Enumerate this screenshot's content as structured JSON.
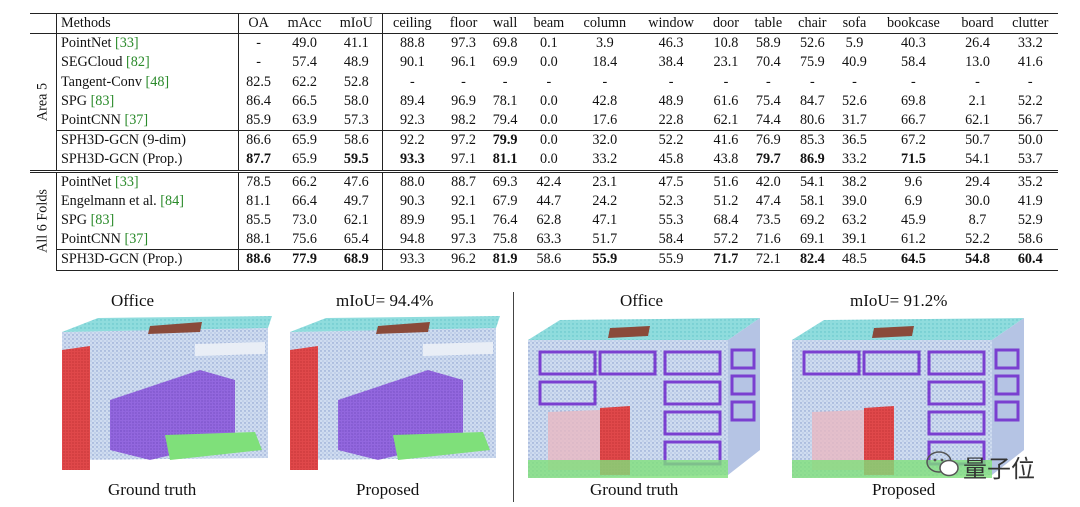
{
  "table": {
    "columns": [
      "Methods",
      "OA",
      "mAcc",
      "mIoU",
      "ceiling",
      "floor",
      "wall",
      "beam",
      "column",
      "window",
      "door",
      "table",
      "chair",
      "sofa",
      "bookcase",
      "board",
      "clutter"
    ],
    "groups": [
      {
        "label": "Area 5",
        "rows": [
          {
            "name": "PointNet ",
            "cite": "[33]",
            "vals": [
              "-",
              "49.0",
              "41.1",
              "88.8",
              "97.3",
              "69.8",
              "0.1",
              "3.9",
              "46.3",
              "10.8",
              "58.9",
              "52.6",
              "5.9",
              "40.3",
              "26.4",
              "33.2"
            ],
            "bold": []
          },
          {
            "name": "SEGCloud ",
            "cite": "[82]",
            "vals": [
              "-",
              "57.4",
              "48.9",
              "90.1",
              "96.1",
              "69.9",
              "0.0",
              "18.4",
              "38.4",
              "23.1",
              "70.4",
              "75.9",
              "40.9",
              "58.4",
              "13.0",
              "41.6"
            ],
            "bold": []
          },
          {
            "name": "Tangent-Conv ",
            "cite": "[48]",
            "vals": [
              "82.5",
              "62.2",
              "52.8",
              "-",
              "-",
              "-",
              "-",
              "-",
              "-",
              "-",
              "-",
              "-",
              "-",
              "-",
              "-",
              "-"
            ],
            "bold": []
          },
          {
            "name": "SPG ",
            "cite": "[83]",
            "vals": [
              "86.4",
              "66.5",
              "58.0",
              "89.4",
              "96.9",
              "78.1",
              "0.0",
              "42.8",
              "48.9",
              "61.6",
              "75.4",
              "84.7",
              "52.6",
              "69.8",
              "2.1",
              "52.2"
            ],
            "bold": []
          },
          {
            "name": "PointCNN ",
            "cite": "[37]",
            "vals": [
              "85.9",
              "63.9",
              "57.3",
              "92.3",
              "98.2",
              "79.4",
              "0.0",
              "17.6",
              "22.8",
              "62.1",
              "74.4",
              "80.6",
              "31.7",
              "66.7",
              "62.1",
              "56.7"
            ],
            "bold": []
          },
          {
            "name": "SPH3D-GCN (9-dim)",
            "cite": "",
            "vals": [
              "86.6",
              "65.9",
              "58.6",
              "92.2",
              "97.2",
              "79.9",
              "0.0",
              "32.0",
              "52.2",
              "41.6",
              "76.9",
              "85.3",
              "36.5",
              "67.2",
              "50.7",
              "50.0"
            ],
            "bold": [
              5
            ]
          },
          {
            "name": "SPH3D-GCN (Prop.)",
            "cite": "",
            "vals": [
              "87.7",
              "65.9",
              "59.5",
              "93.3",
              "97.1",
              "81.1",
              "0.0",
              "33.2",
              "45.8",
              "43.8",
              "79.7",
              "86.9",
              "33.2",
              "71.5",
              "54.1",
              "53.7"
            ],
            "bold": [
              0,
              2,
              3,
              5,
              10,
              11,
              13
            ]
          }
        ]
      },
      {
        "label": "All 6 Folds",
        "rows": [
          {
            "name": "PointNet ",
            "cite": "[33]",
            "vals": [
              "78.5",
              "66.2",
              "47.6",
              "88.0",
              "88.7",
              "69.3",
              "42.4",
              "23.1",
              "47.5",
              "51.6",
              "42.0",
              "54.1",
              "38.2",
              "9.6",
              "29.4",
              "35.2"
            ],
            "bold": []
          },
          {
            "name": "Engelmann et al. ",
            "cite": "[84]",
            "vals": [
              "81.1",
              "66.4",
              "49.7",
              "90.3",
              "92.1",
              "67.9",
              "44.7",
              "24.2",
              "52.3",
              "51.2",
              "47.4",
              "58.1",
              "39.0",
              "6.9",
              "30.0",
              "41.9"
            ],
            "bold": []
          },
          {
            "name": "SPG ",
            "cite": "[83]",
            "vals": [
              "85.5",
              "73.0",
              "62.1",
              "89.9",
              "95.1",
              "76.4",
              "62.8",
              "47.1",
              "55.3",
              "68.4",
              "73.5",
              "69.2",
              "63.2",
              "45.9",
              "8.7",
              "52.9"
            ],
            "bold": []
          },
          {
            "name": "PointCNN ",
            "cite": "[37]",
            "vals": [
              "88.1",
              "75.6",
              "65.4",
              "94.8",
              "97.3",
              "75.8",
              "63.3",
              "51.7",
              "58.4",
              "57.2",
              "71.6",
              "69.1",
              "39.1",
              "61.2",
              "52.2",
              "58.6"
            ],
            "bold": []
          },
          {
            "name": "SPH3D-GCN (Prop.)",
            "cite": "",
            "vals": [
              "88.6",
              "77.9",
              "68.9",
              "93.3",
              "96.2",
              "81.9",
              "58.6",
              "55.9",
              "55.9",
              "71.7",
              "72.1",
              "82.4",
              "48.5",
              "64.5",
              "54.8",
              "60.4"
            ],
            "bold": [
              0,
              1,
              2,
              5,
              7,
              9,
              11,
              13,
              14,
              15
            ]
          }
        ]
      }
    ]
  },
  "figure": {
    "panels": [
      {
        "title": "Office",
        "caption": "Ground truth"
      },
      {
        "title": "mIoU= 94.4%",
        "caption": "Proposed"
      },
      {
        "title": "Office",
        "caption": "Ground truth"
      },
      {
        "title": "mIoU= 91.2%",
        "caption": "Proposed"
      }
    ]
  },
  "watermark": {
    "text": "量子位"
  },
  "colors": {
    "ceiling": "#7fd6d9",
    "wall_pts": "#b8c8e6",
    "purple": "#7a3fd0",
    "red": "#d9363a",
    "green": "#7fe07a",
    "brown": "#8a4a3a",
    "cite": "#2a8a2a"
  }
}
